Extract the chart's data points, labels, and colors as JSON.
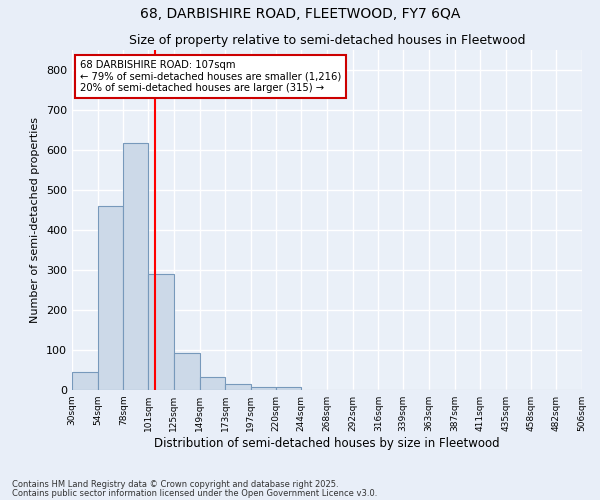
{
  "title1": "68, DARBISHIRE ROAD, FLEETWOOD, FY7 6QA",
  "title2": "Size of property relative to semi-detached houses in Fleetwood",
  "xlabel": "Distribution of semi-detached houses by size in Fleetwood",
  "ylabel": "Number of semi-detached properties",
  "bar_edges": [
    30,
    54,
    78,
    101,
    125,
    149,
    173,
    197,
    220,
    244,
    268,
    292,
    316,
    339,
    363,
    387,
    411,
    435,
    458,
    482,
    506
  ],
  "bar_heights": [
    44,
    460,
    617,
    290,
    92,
    33,
    14,
    7,
    7,
    0,
    0,
    0,
    0,
    0,
    0,
    0,
    0,
    0,
    0,
    0
  ],
  "bar_color": "#ccd9e8",
  "bar_edge_color": "#7799bb",
  "red_line_x": 107,
  "ylim": [
    0,
    850
  ],
  "yticks": [
    0,
    100,
    200,
    300,
    400,
    500,
    600,
    700,
    800
  ],
  "annotation_title": "68 DARBISHIRE ROAD: 107sqm",
  "annotation_line1": "← 79% of semi-detached houses are smaller (1,216)",
  "annotation_line2": "20% of semi-detached houses are larger (315) →",
  "annotation_box_color": "#ffffff",
  "annotation_border_color": "#cc0000",
  "tick_labels": [
    "30sqm",
    "54sqm",
    "78sqm",
    "101sqm",
    "125sqm",
    "149sqm",
    "173sqm",
    "197sqm",
    "220sqm",
    "244sqm",
    "268sqm",
    "292sqm",
    "316sqm",
    "339sqm",
    "363sqm",
    "387sqm",
    "411sqm",
    "435sqm",
    "458sqm",
    "482sqm",
    "506sqm"
  ],
  "footnote1": "Contains HM Land Registry data © Crown copyright and database right 2025.",
  "footnote2": "Contains public sector information licensed under the Open Government Licence v3.0.",
  "bg_color": "#e8eef8",
  "plot_bg_color": "#eaf0f8",
  "grid_color": "#ffffff"
}
